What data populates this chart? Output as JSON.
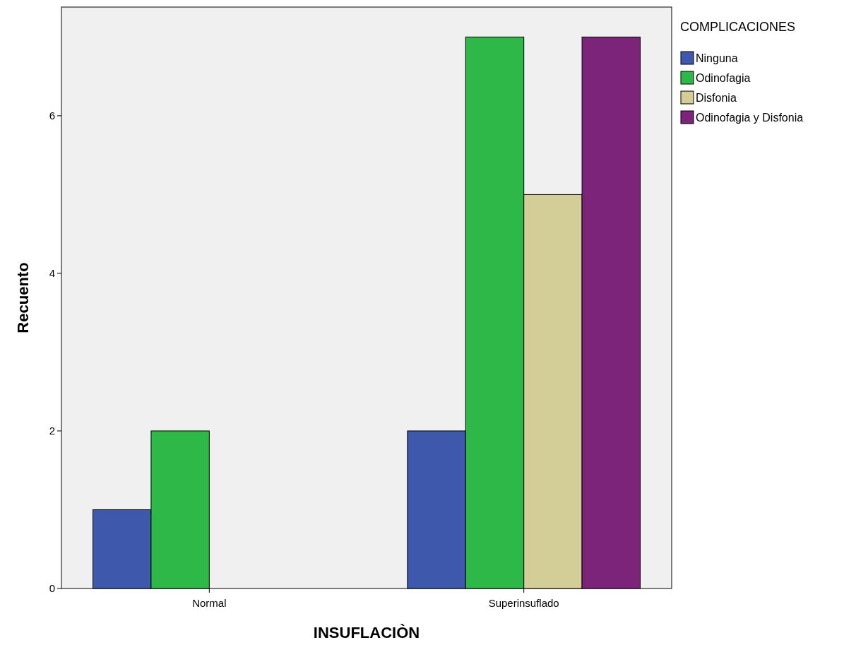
{
  "chart_data": {
    "type": "bar",
    "xlabel": "INSUFLACIÒN",
    "ylabel": "Recuento",
    "legend_title": "COMPLICACIONES",
    "legend": "top right",
    "categories": [
      "Normal",
      "Superinsuflado"
    ],
    "series": [
      {
        "name": "Ninguna",
        "color": "#3e58ac",
        "values": [
          1,
          2
        ]
      },
      {
        "name": "Odinofagia",
        "color": "#2eb848",
        "values": [
          2,
          7
        ]
      },
      {
        "name": "Disfonia",
        "color": "#d3ce97",
        "values": [
          null,
          5
        ]
      },
      {
        "name": "Odinofagia y Disfonia",
        "color": "#7b2479",
        "values": [
          null,
          7
        ]
      }
    ],
    "ylim": [
      0,
      7.38
    ],
    "yticks": [
      0,
      2,
      4,
      6
    ],
    "grid": false
  }
}
